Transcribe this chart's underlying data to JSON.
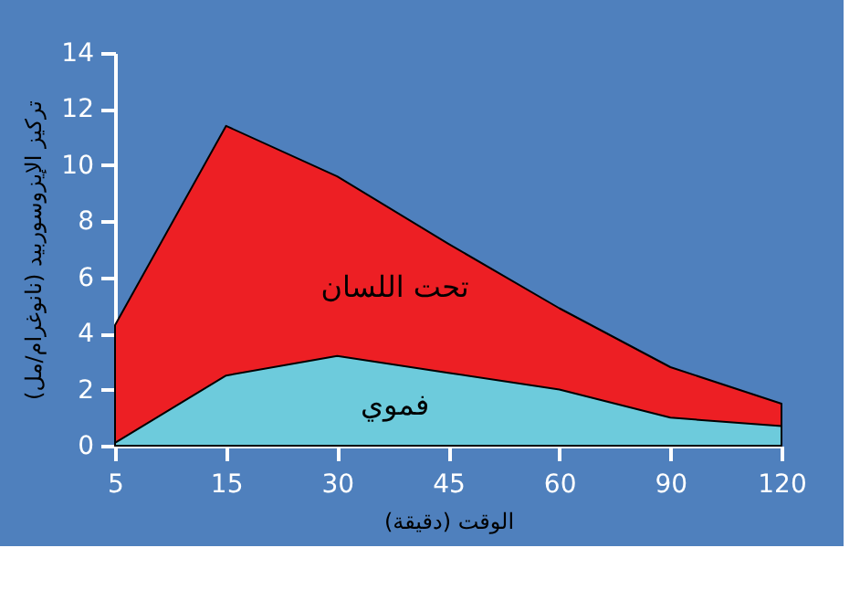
{
  "chart_data": {
    "type": "area",
    "xlabel": "الوقت (دقيقة)",
    "ylabel": "تركيز الإيزوسوربيد (نانوغرام/مل)",
    "categories": [
      "5",
      "15",
      "30",
      "45",
      "60",
      "90",
      "120"
    ],
    "series": [
      {
        "name": "تحت اللسان",
        "color": "#ed1f24",
        "values": [
          4.3,
          11.4,
          9.6,
          7.2,
          4.9,
          2.8,
          1.5
        ]
      },
      {
        "name": "فموي",
        "color": "#6dcbdc",
        "values": [
          0.1,
          2.5,
          3.2,
          2.6,
          2.0,
          1.0,
          0.7
        ]
      }
    ],
    "ylim": [
      0,
      14
    ],
    "yticks": [
      0,
      2,
      4,
      6,
      8,
      10,
      12,
      14
    ],
    "grid": false
  }
}
